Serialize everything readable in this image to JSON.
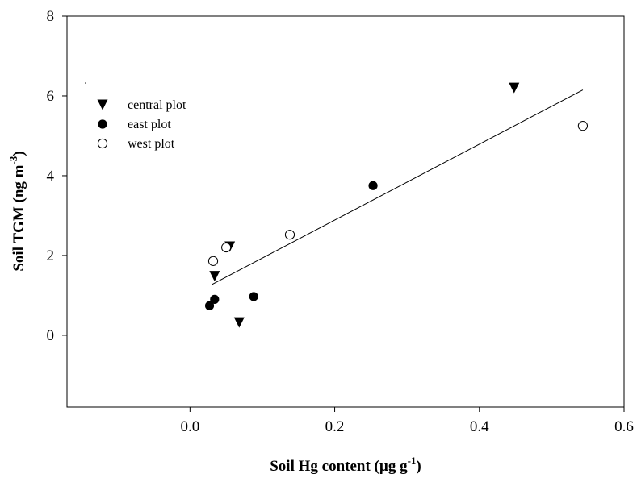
{
  "chart_data": {
    "type": "scatter",
    "title": "",
    "xlabel": "Soil Hg content (µg g⁻¹)",
    "ylabel": "Soil TGM (ng m⁻³)",
    "xlim": [
      -0.17,
      0.6
    ],
    "ylim": [
      -1.8,
      8
    ],
    "x_ticks": [
      "0.0",
      "0.2",
      "0.4",
      "0.6"
    ],
    "x_tick_values": [
      0.0,
      0.2,
      0.4,
      0.6
    ],
    "y_ticks": [
      "0",
      "2",
      "4",
      "6",
      "8"
    ],
    "y_tick_values": [
      0,
      2,
      4,
      6,
      8
    ],
    "grid": false,
    "legend_position": "top-left",
    "series": [
      {
        "name": "central plot",
        "marker": "filled-down-triangle",
        "points": [
          [
            0.034,
            1.48
          ],
          [
            0.055,
            2.22
          ],
          [
            0.068,
            0.32
          ],
          [
            0.448,
            6.2
          ]
        ]
      },
      {
        "name": "east plot",
        "marker": "filled-circle",
        "points": [
          [
            0.027,
            0.74
          ],
          [
            0.034,
            0.9
          ],
          [
            0.088,
            0.97
          ],
          [
            0.253,
            3.75
          ]
        ]
      },
      {
        "name": "west plot",
        "marker": "open-circle",
        "points": [
          [
            0.032,
            1.86
          ],
          [
            0.05,
            2.2
          ],
          [
            0.138,
            2.52
          ],
          [
            0.543,
            5.25
          ]
        ]
      }
    ],
    "regression_line": {
      "x": [
        0.03,
        0.543
      ],
      "y": [
        1.27,
        6.15
      ]
    }
  }
}
